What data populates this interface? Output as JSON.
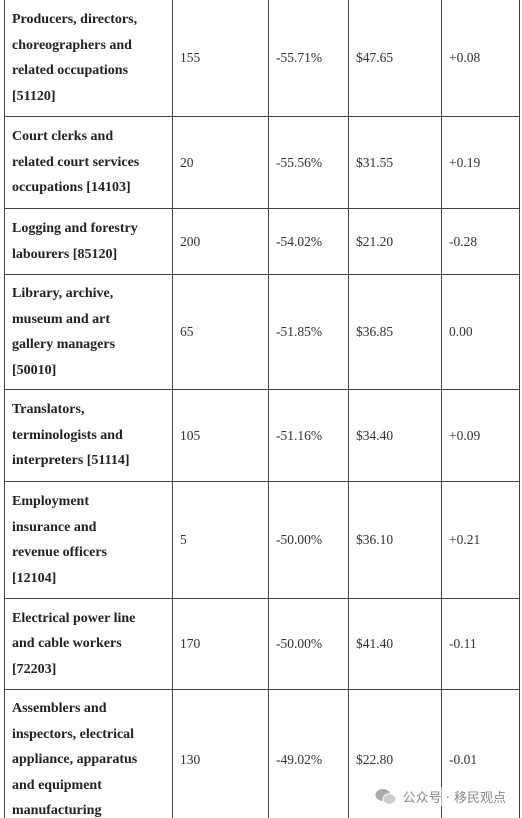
{
  "table": {
    "rows": [
      {
        "label_lines": [
          "Producers, directors,",
          "choreographers and",
          "related occupations",
          "[51120]"
        ],
        "cells": [
          "155",
          "-55.71%",
          "$47.65",
          "+0.08"
        ]
      },
      {
        "label_lines": [
          "Court clerks and",
          "related court services",
          "occupations  [14103]"
        ],
        "cells": [
          "20",
          "-55.56%",
          "$31.55",
          "+0.19"
        ]
      },
      {
        "label_lines": [
          "Logging and forestry",
          "labourers  [85120]"
        ],
        "cells": [
          "200",
          "-54.02%",
          "$21.20",
          "-0.28"
        ]
      },
      {
        "label_lines": [
          "Library, archive,",
          "museum and art",
          "gallery managers",
          "[50010]"
        ],
        "cells": [
          "65",
          "-51.85%",
          "$36.85",
          "0.00"
        ]
      },
      {
        "label_lines": [
          "Translators,",
          "terminologists and",
          "interpreters  [51114]"
        ],
        "cells": [
          "105",
          "-51.16%",
          "$34.40",
          "+0.09"
        ]
      },
      {
        "label_lines": [
          "Employment",
          "insurance and",
          "revenue officers",
          "[12104]"
        ],
        "cells": [
          "5",
          "-50.00%",
          "$36.10",
          "+0.21"
        ]
      },
      {
        "label_lines": [
          "Electrical power line",
          "and cable workers",
          "[72203]"
        ],
        "cells": [
          "170",
          "-50.00%",
          "$41.40",
          "-0.11"
        ]
      },
      {
        "label_lines": [
          "Assemblers and",
          "inspectors, electrical",
          "appliance, apparatus",
          "and equipment",
          "manufacturing"
        ],
        "cells": [
          "130",
          "-49.02%",
          "$22.80",
          "-0.01"
        ]
      }
    ]
  },
  "watermark": "公众号 · 移民观点"
}
